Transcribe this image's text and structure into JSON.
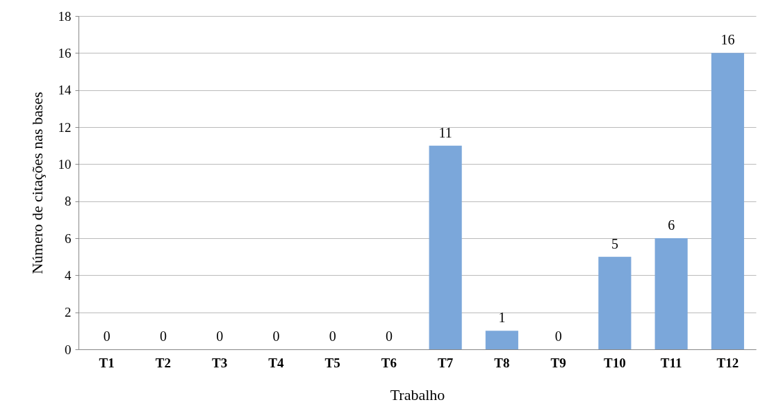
{
  "chart_data": {
    "type": "bar",
    "xlabel": "Trabalho",
    "ylabel": "Número de citações nas bases",
    "categories": [
      "T1",
      "T2",
      "T3",
      "T4",
      "T5",
      "T6",
      "T7",
      "T8",
      "T9",
      "T10",
      "T11",
      "T12"
    ],
    "values": [
      0,
      0,
      0,
      0,
      0,
      0,
      11,
      1,
      0,
      5,
      6,
      16
    ],
    "color": "#7ba7da",
    "ylim": [
      0,
      18
    ],
    "yticks": [
      0,
      2,
      4,
      6,
      8,
      10,
      12,
      14,
      16,
      18
    ],
    "grid": "y",
    "data_labels": true
  }
}
